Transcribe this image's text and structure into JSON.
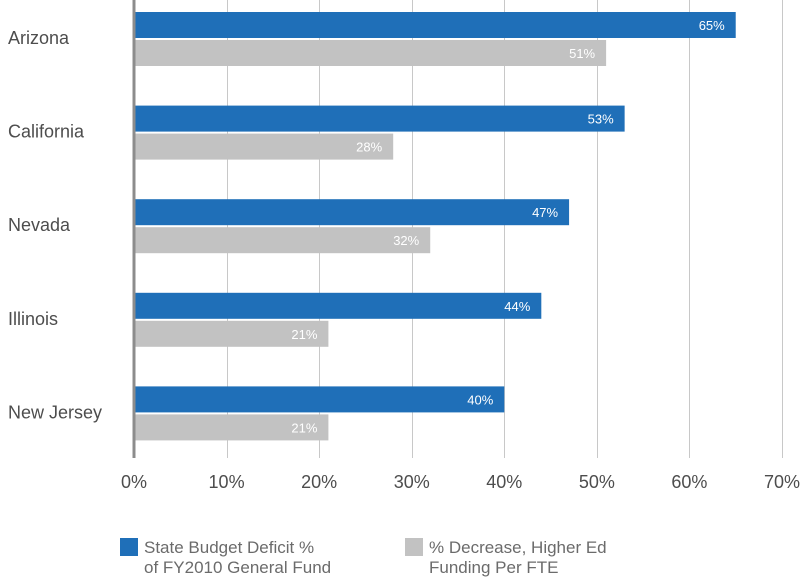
{
  "chart_data": {
    "type": "bar",
    "orientation": "horizontal",
    "categories": [
      "Arizona",
      "California",
      "Nevada",
      "Illinois",
      "New Jersey"
    ],
    "series": [
      {
        "name": "State Budget Deficit % of FY2010 General Fund",
        "legend_lines": [
          "State Budget Deficit %",
          "of FY2010 General Fund"
        ],
        "color": "#1f6fb8",
        "values": [
          65,
          53,
          47,
          44,
          40
        ],
        "labels": [
          "65%",
          "53%",
          "47%",
          "44%",
          "40%"
        ]
      },
      {
        "name": "% Decrease, Higher Ed Funding Per FTE",
        "legend_lines": [
          "% Decrease, Higher Ed",
          "Funding Per FTE"
        ],
        "color": "#c2c2c2",
        "values": [
          51,
          28,
          32,
          21,
          21
        ],
        "labels": [
          "51%",
          "28%",
          "32%",
          "21%",
          "21%"
        ]
      }
    ],
    "xlim": [
      0,
      70
    ],
    "x_ticks": [
      0,
      10,
      20,
      30,
      40,
      50,
      60,
      70
    ],
    "x_tick_labels": [
      "0%",
      "10%",
      "20%",
      "30%",
      "40%",
      "50%",
      "60%",
      "70%"
    ],
    "grid": true,
    "legend_position": "bottom"
  }
}
